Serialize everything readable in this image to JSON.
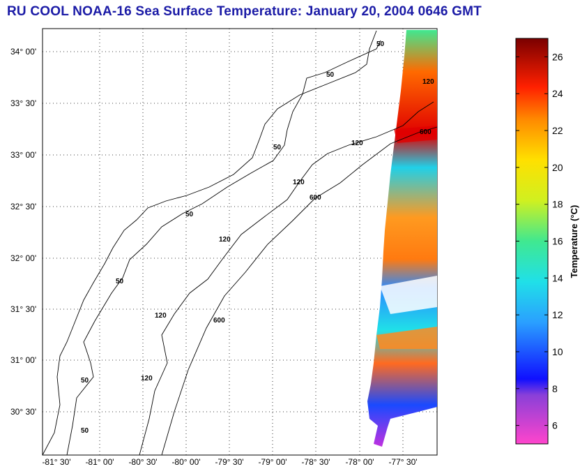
{
  "title": "RU COOL  NOAA-16  Sea Surface Temperature:  January 20, 2004 0646 GMT",
  "map": {
    "lat_ticks": [
      "34° 00'",
      "33° 30'",
      "33° 00'",
      "32° 30'",
      "32° 00'",
      "31° 30'",
      "31° 00'",
      "30° 30'"
    ],
    "lon_ticks": [
      "-81° 30'",
      "-81° 00'",
      "-80° 30'",
      "-80° 00'",
      "-79° 30'",
      "-79° 00'",
      "-78° 30'",
      "-78° 00'",
      "-77° 30'"
    ],
    "isobath_labels": [
      "50",
      "50",
      "50",
      "50",
      "50",
      "50",
      "50",
      "120",
      "120",
      "120",
      "120",
      "120",
      "120",
      "600",
      "600",
      "600"
    ],
    "grid": "dotted"
  },
  "colorbar": {
    "label": "Temperature (°C)",
    "ticks": [
      "26",
      "24",
      "22",
      "20",
      "18",
      "16",
      "14",
      "12",
      "10",
      "8",
      "6"
    ],
    "range": [
      5,
      27
    ]
  }
}
